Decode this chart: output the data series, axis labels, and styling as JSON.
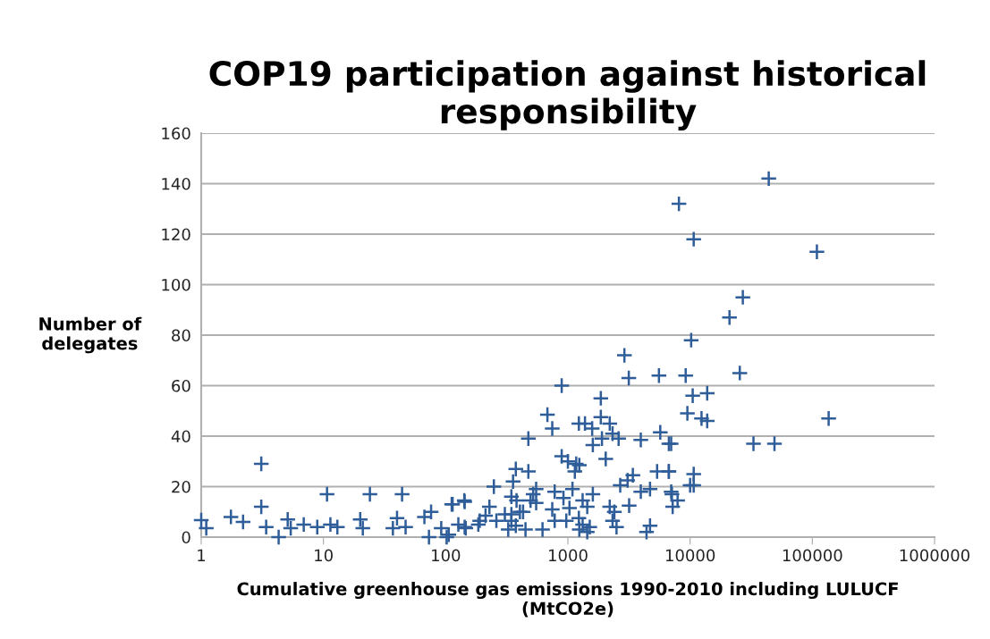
{
  "chart_data": {
    "type": "scatter",
    "title": "COP19 participation against historical responsibility",
    "xlabel": "Cumulative greenhouse gas emissions 1990-2010 including LULUCF\n(MtCO2e)",
    "ylabel": "Number of\ndelegates",
    "log": "x",
    "grid": "y",
    "marker": "cross",
    "xlim": [
      1,
      1000000
    ],
    "xticks": [
      1,
      10,
      100,
      1000,
      10000,
      100000,
      1000000
    ],
    "ylim": [
      0,
      160
    ],
    "yticks": [
      0,
      20,
      40,
      60,
      80,
      100,
      120,
      140,
      160
    ],
    "series": [
      {
        "color": "#2e5d99",
        "x": [
          1.0,
          1.1,
          1.75,
          2.2,
          3.1,
          3.1,
          3.4,
          4.3,
          5.1,
          5.4,
          6.9,
          8.9,
          10.7,
          11.4,
          13,
          20,
          21,
          24,
          37,
          40,
          44,
          47,
          67,
          73,
          76,
          92,
          102,
          114,
          142,
          146,
          890,
          1860,
          680,
          745,
          1230,
          1380,
          1580,
          1860,
          2200,
          2320,
          2600,
          1900,
          3950,
          1600,
          5700,
          6700,
          475,
          890,
          1000,
          1170,
          1240,
          1140,
          2040,
          375,
          475,
          356,
          248,
          3400,
          3080,
          2680,
          5370,
          6700,
          3950,
          4700,
          7100,
          2200,
          3170,
          2400,
          1600,
          1090,
          780,
          550,
          520,
          345,
          143,
          112,
          228,
          380,
          550,
          920,
          1320,
          1440,
          1030,
          745,
          430,
          305,
          212,
          190,
          127,
          143,
          260,
          345,
          375,
          450,
          620,
          780,
          970,
          1230,
          1320,
          1240,
          1510,
          2320,
          2500,
          4700,
          4400,
          1440,
          325,
          106,
          345,
          405,
          495,
          185,
          44000,
          8100,
          10700,
          109000,
          27000,
          21000,
          10200,
          9200,
          25500,
          10500,
          13800,
          9500,
          12400,
          13800,
          136000,
          7000,
          33000,
          49000,
          6700,
          10700,
          10000,
          10700,
          7000,
          7900,
          7200,
          2900,
          3150,
          5560
        ],
        "values": [
          6.7,
          3.5,
          8,
          6,
          29,
          12,
          4,
          0,
          7,
          3.5,
          5,
          4,
          17,
          5,
          4,
          7,
          3.5,
          17,
          3.5,
          7.5,
          17,
          4,
          8,
          0,
          10,
          3.5,
          0,
          13,
          14.5,
          3.5,
          60,
          55,
          48.5,
          43,
          45,
          45,
          43,
          47.5,
          45,
          41,
          39,
          39,
          38.5,
          36.5,
          41.5,
          37,
          39,
          32,
          30,
          29,
          28.5,
          26,
          31,
          27,
          26,
          22,
          20,
          24.5,
          22.5,
          20.5,
          26,
          26,
          18,
          19,
          17,
          12,
          12.5,
          10,
          17,
          19,
          18,
          19,
          17,
          16,
          14,
          13,
          12,
          14.5,
          13.5,
          15.5,
          14.5,
          12,
          11.5,
          11,
          10,
          9,
          8.5,
          6.5,
          5,
          4,
          6.5,
          6.5,
          4.5,
          3,
          3,
          6.5,
          6.5,
          7.5,
          5,
          3,
          4,
          6.5,
          4,
          4.5,
          2,
          2,
          3,
          1,
          9,
          10,
          14.5,
          5,
          142,
          132,
          118,
          113,
          95,
          87,
          78,
          64,
          65,
          56,
          57,
          49,
          47,
          46,
          47,
          37,
          37,
          37,
          26,
          25,
          20.5,
          20.5,
          18,
          14.5,
          12,
          72,
          63,
          64
        ]
      }
    ]
  }
}
